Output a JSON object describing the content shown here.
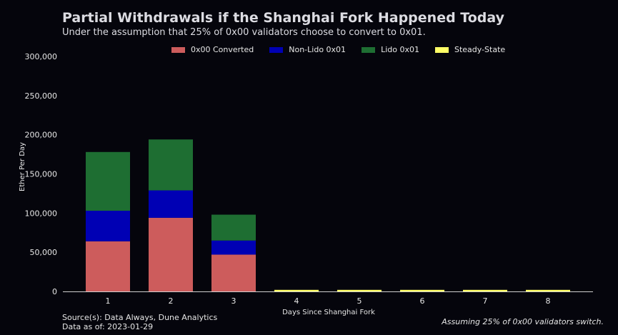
{
  "chart_data": {
    "type": "bar",
    "stacked": true,
    "title": "Partial Withdrawals if the Shanghai Fork Happened Today",
    "subtitle": "Under the assumption that 25% of 0x00 validators choose to convert to 0x01.",
    "xlabel": "Days Since Shanghai Fork",
    "ylabel": "Ether Per Day",
    "categories": [
      "1",
      "2",
      "3",
      "4",
      "5",
      "6",
      "7",
      "8"
    ],
    "ylim": [
      0,
      300000
    ],
    "yticks": [
      0,
      50000,
      100000,
      150000,
      200000,
      250000,
      300000
    ],
    "ytick_labels": [
      "0",
      "50,000",
      "100,000",
      "150,000",
      "200,000",
      "250,000",
      "300,000"
    ],
    "legend_position": "top",
    "grid": false,
    "series": [
      {
        "name": "0x00 Converted",
        "color": "#cd5c5c",
        "values": [
          64000,
          94000,
          47000,
          0,
          0,
          0,
          0,
          0
        ]
      },
      {
        "name": "Non-Lido 0x01",
        "color": "#0000b4",
        "values": [
          39000,
          35000,
          18000,
          0,
          0,
          0,
          0,
          0
        ]
      },
      {
        "name": "Lido 0x01",
        "color": "#1e6e32",
        "values": [
          75000,
          65000,
          33000,
          0,
          0,
          0,
          0,
          0
        ]
      },
      {
        "name": "Steady-State",
        "color": "#ffff66",
        "values": [
          0,
          0,
          0,
          2000,
          2000,
          2000,
          2000,
          2000
        ]
      }
    ]
  },
  "footer": {
    "source": "Source(s): Data Always, Dune Analytics",
    "as_of": "Data as of: 2023-01-29",
    "note": "Assuming 25% of 0x00 validators switch."
  }
}
